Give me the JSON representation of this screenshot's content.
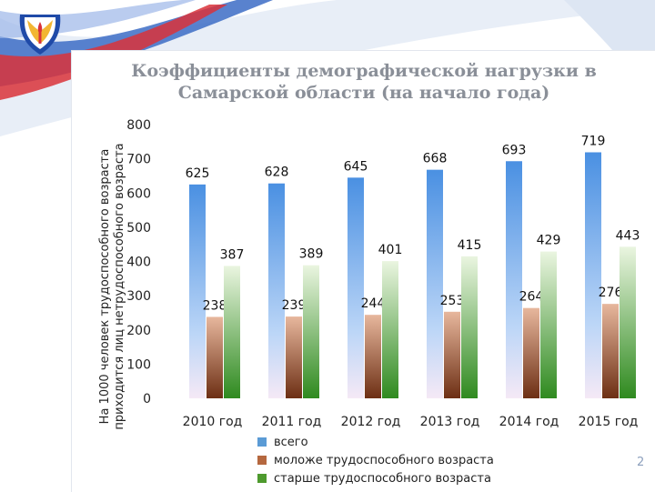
{
  "chart_data": {
    "type": "bar",
    "title": "Коэффициенты демографической нагрузки в Самарской области (на начало года)",
    "title_lines": [
      "Коэффициенты демографической нагрузки в",
      "Самарской области (на начало года)"
    ],
    "ylabel": "На 1000 человек трудоспособного возраста приходится лиц нетрудоспособного возраста",
    "ylabel_lines": [
      "На 1000 человек трудоспособного возраста",
      "приходится лиц нетрудоспособного возраста"
    ],
    "categories": [
      "2010 год",
      "2011 год",
      "2012 год",
      "2013 год",
      "2014 год",
      "2015 год"
    ],
    "ylim": [
      0,
      800
    ],
    "yticks": [
      0,
      100,
      200,
      300,
      400,
      500,
      600,
      700,
      800
    ],
    "grid": false,
    "legend_position": "bottom",
    "series": [
      {
        "name": "всего",
        "values": [
          625,
          628,
          645,
          668,
          693,
          719
        ],
        "color": "#5b9bd5"
      },
      {
        "name": "моложе трудоспособного возраста",
        "values": [
          238,
          239,
          244,
          253,
          264,
          276
        ],
        "color": "#b5683f"
      },
      {
        "name": "старше трудоспособного возраста",
        "values": [
          387,
          389,
          401,
          415,
          429,
          443
        ],
        "color": "#4e9a2e"
      }
    ]
  },
  "slide": {
    "page_number": "2"
  }
}
